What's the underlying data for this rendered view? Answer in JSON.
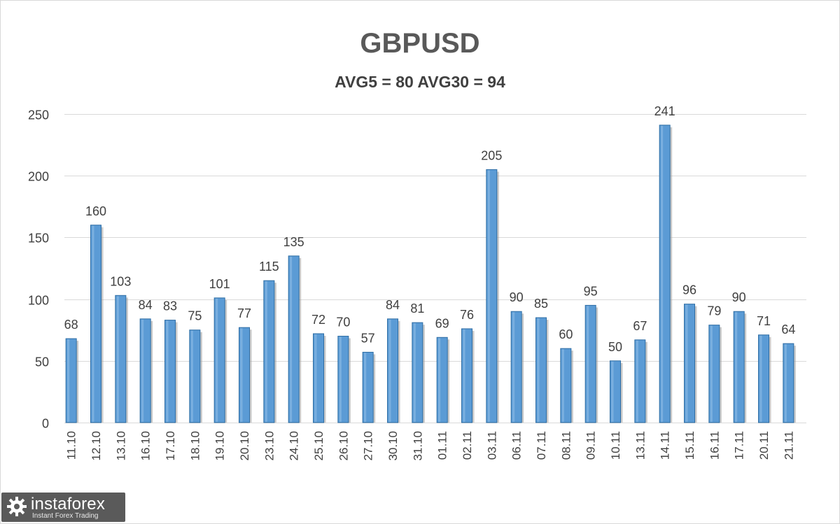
{
  "chart_data": {
    "type": "bar",
    "title": "GBPUSD",
    "subtitle": "AVG5 = 80 AVG30 = 94",
    "categories": [
      "11.10",
      "12.10",
      "13.10",
      "16.10",
      "17.10",
      "18.10",
      "19.10",
      "20.10",
      "23.10",
      "24.10",
      "25.10",
      "26.10",
      "27.10",
      "30.10",
      "31.10",
      "01.11",
      "02.11",
      "03.11",
      "06.11",
      "07.11",
      "08.11",
      "09.11",
      "10.11",
      "13.11",
      "14.11",
      "15.11",
      "16.11",
      "17.11",
      "20.11",
      "21.11"
    ],
    "values": [
      68,
      160,
      103,
      84,
      83,
      75,
      101,
      77,
      115,
      135,
      72,
      70,
      57,
      84,
      81,
      69,
      76,
      205,
      90,
      85,
      60,
      95,
      50,
      67,
      241,
      96,
      79,
      90,
      71,
      64
    ],
    "yticks": [
      0,
      50,
      100,
      150,
      200,
      250
    ],
    "ylim": [
      0,
      250
    ],
    "grid": true,
    "legend": "none",
    "bar_color": "#5b9bd5",
    "bar_edge_color": "#2e6da4"
  },
  "watermark": {
    "name": "instaforex",
    "tagline": "Instant Forex Trading",
    "icon": "gear-logo-icon"
  },
  "colors": {
    "grid": "#d9d9d9",
    "text": "#404040",
    "title": "#595959"
  }
}
